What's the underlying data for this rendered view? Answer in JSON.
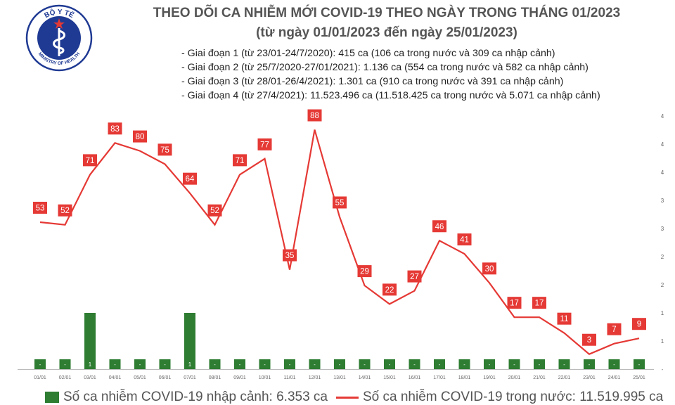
{
  "header": {
    "title_line1": "THEO DÕI CA NHIỄM MỚI COVID-19 THEO NGÀY TRONG THÁNG 01/2023",
    "title_line2": "(từ ngày 01/01/2023 đến ngày 25/01/2023)"
  },
  "logo": {
    "top_text": "BỘ Y TẾ",
    "bottom_text": "MINISTRY OF HEALTH",
    "icon": "ministry-of-health-emblem"
  },
  "phases": [
    "- Giai đoạn 1 (từ 23/01-24/7/2020): 415 ca (106 ca trong nước và 309 ca nhập cảnh)",
    "- Giai đoạn 2 (từ 25/7/2020-27/01/2021): 1.136 ca (554 ca trong nước và 582 ca nhập cảnh)",
    "- Giai đoạn 3 (từ 28/01-26/4/2021): 1.301 ca (910 ca trong nước và 391 ca nhập cảnh)",
    "- Giai đoạn 4 (từ 27/4/2021): 11.523.496 ca (11.518.425 ca trong nước và 5.071 ca nhập cảnh)"
  ],
  "legend": {
    "bar_label": "Số ca nhiễm COVID-19 nhập cảnh: 6.353 ca",
    "line_label": "Số ca nhiễm COVID-19 trong nước: 11.519.995 ca"
  },
  "colors": {
    "line": "#e53935",
    "bar": "#2e7d32",
    "label_box": "#e53935",
    "title": "#555555"
  },
  "chart_data": {
    "type": "bar",
    "categories": [
      "01/01",
      "02/01",
      "03/01",
      "04/01",
      "05/01",
      "06/01",
      "07/01",
      "08/01",
      "09/01",
      "10/01",
      "11/01",
      "12/01",
      "13/01",
      "14/01",
      "15/01",
      "16/01",
      "17/01",
      "18/01",
      "19/01",
      "20/01",
      "21/01",
      "22/01",
      "23/01",
      "24/01",
      "25/01"
    ],
    "series": [
      {
        "name": "Số ca nhiễm COVID-19 nhập cảnh: 6.353 ca",
        "type": "bar",
        "axis": "right",
        "values": [
          0,
          0,
          1,
          0,
          0,
          0,
          1,
          0,
          0,
          0,
          0,
          0,
          0,
          0,
          0,
          0,
          0,
          0,
          0,
          0,
          0,
          0,
          0,
          0,
          0
        ],
        "labels": [
          "-",
          "-",
          "1",
          "-",
          "-",
          "-",
          "1",
          "-",
          "-",
          "-",
          "-",
          "-",
          "-",
          "-",
          "-",
          "-",
          "-",
          "-",
          "-",
          "-",
          "-",
          "-",
          "-",
          "-",
          "-"
        ]
      },
      {
        "name": "Số ca nhiễm COVID-19 trong nước: 11.519.995 ca",
        "type": "line",
        "axis": "left",
        "values": [
          53,
          52,
          71,
          83,
          80,
          75,
          64,
          52,
          71,
          77,
          35,
          88,
          55,
          29,
          22,
          27,
          46,
          41,
          30,
          17,
          17,
          11,
          3,
          7,
          9
        ]
      }
    ],
    "right_axis": {
      "ticks": [
        0.5,
        1,
        1.5,
        2,
        2.5,
        3,
        3.5,
        4,
        4.5
      ],
      "tick_labels": [
        "1",
        "1",
        "2",
        "2",
        "3",
        "3",
        "4",
        "4",
        "4"
      ],
      "ylim": [
        0,
        4.7
      ]
    },
    "left_axis": {
      "ylim": [
        0,
        94
      ]
    },
    "legend_position": "bottom"
  }
}
